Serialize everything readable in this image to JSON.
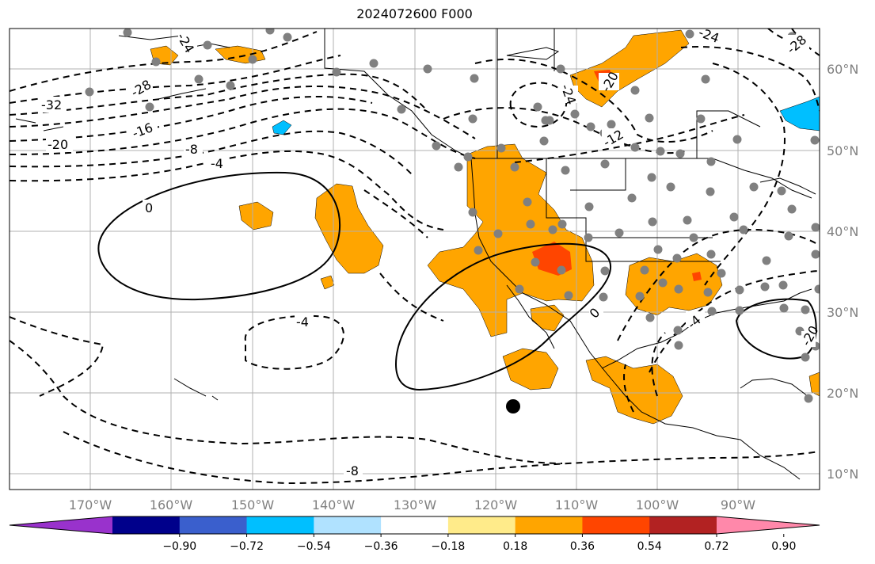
{
  "title": "2024072600 F000",
  "lon_labels": [
    "170°W",
    "160°W",
    "150°W",
    "140°W",
    "130°W",
    "120°W",
    "110°W",
    "100°W",
    "90°W"
  ],
  "lat_labels": [
    "60°N",
    "50°N",
    "40°N",
    "30°N",
    "20°N",
    "10°N"
  ],
  "contour_labels": [
    "-32",
    "-28",
    "-24",
    "-20",
    "-16",
    "-8",
    "-4",
    "0",
    "-4",
    "-8",
    "-24",
    "-20",
    "-12",
    "0",
    "-4",
    "-20",
    "-24",
    "-28"
  ],
  "colorbar": {
    "colors": [
      "#9932cc",
      "#00008b",
      "#3a5fcd",
      "#00bfff",
      "#b0e2ff",
      "#ffffff",
      "#ffeb8a",
      "#ffa500",
      "#ff4500",
      "#b22222",
      "#ff88aa"
    ],
    "ticks": [
      "−0.90",
      "−0.72",
      "−0.54",
      "−0.36",
      "−0.18",
      "0.18",
      "0.36",
      "0.54",
      "0.72",
      "0.90"
    ]
  }
}
